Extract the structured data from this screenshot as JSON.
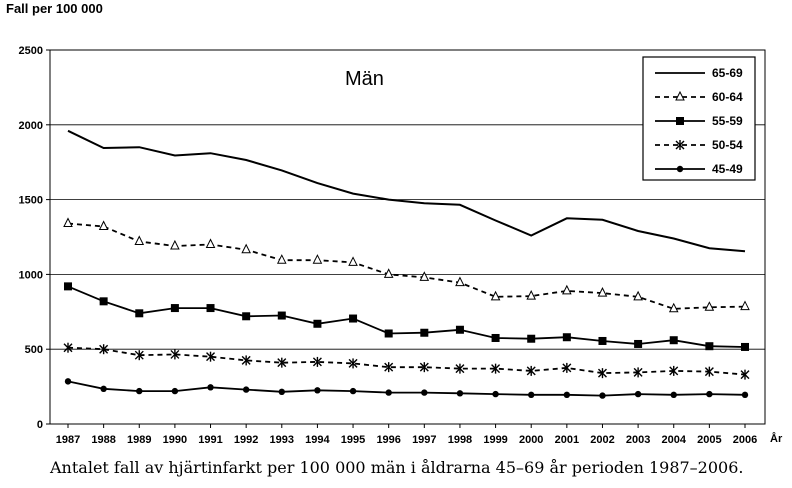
{
  "chart_data": {
    "type": "line",
    "title": "Män",
    "ylabel": "Fall per 100 000",
    "xlabel": "År",
    "ylim": [
      0,
      2500
    ],
    "yticks": [
      0,
      500,
      1000,
      1500,
      2000,
      2500
    ],
    "grid": "horizontal",
    "legend_position": "top-right",
    "x": [
      1987,
      1988,
      1989,
      1990,
      1991,
      1992,
      1993,
      1994,
      1995,
      1996,
      1997,
      1998,
      1999,
      2000,
      2001,
      2002,
      2003,
      2004,
      2005,
      2006
    ],
    "series": [
      {
        "name": "65-69",
        "style": "solid",
        "marker": "none",
        "values": [
          1960,
          1845,
          1850,
          1795,
          1810,
          1765,
          1695,
          1610,
          1540,
          1500,
          1475,
          1465,
          1360,
          1260,
          1375,
          1365,
          1290,
          1240,
          1175,
          1155
        ]
      },
      {
        "name": "60-64",
        "style": "dashed",
        "marker": "triangle-open",
        "values": [
          1340,
          1320,
          1220,
          1190,
          1200,
          1165,
          1095,
          1095,
          1080,
          1000,
          980,
          945,
          850,
          855,
          890,
          875,
          850,
          770,
          780,
          785
        ]
      },
      {
        "name": "55-59",
        "style": "solid",
        "marker": "square",
        "values": [
          920,
          820,
          740,
          775,
          775,
          720,
          725,
          670,
          705,
          605,
          610,
          630,
          575,
          570,
          580,
          555,
          535,
          560,
          520,
          515
        ]
      },
      {
        "name": "50-54",
        "style": "dashed",
        "marker": "star",
        "values": [
          510,
          500,
          460,
          465,
          450,
          425,
          410,
          415,
          405,
          380,
          380,
          370,
          370,
          355,
          375,
          340,
          345,
          355,
          350,
          330
        ]
      },
      {
        "name": "45-49",
        "style": "solid",
        "marker": "circle",
        "values": [
          285,
          235,
          220,
          220,
          245,
          230,
          215,
          225,
          220,
          210,
          210,
          205,
          200,
          195,
          195,
          190,
          200,
          195,
          200,
          195
        ]
      }
    ]
  },
  "caption": "Antalet fall av hjärtinfarkt per 100 000 män i åldrarna 45–69 år perioden 1987–2006."
}
